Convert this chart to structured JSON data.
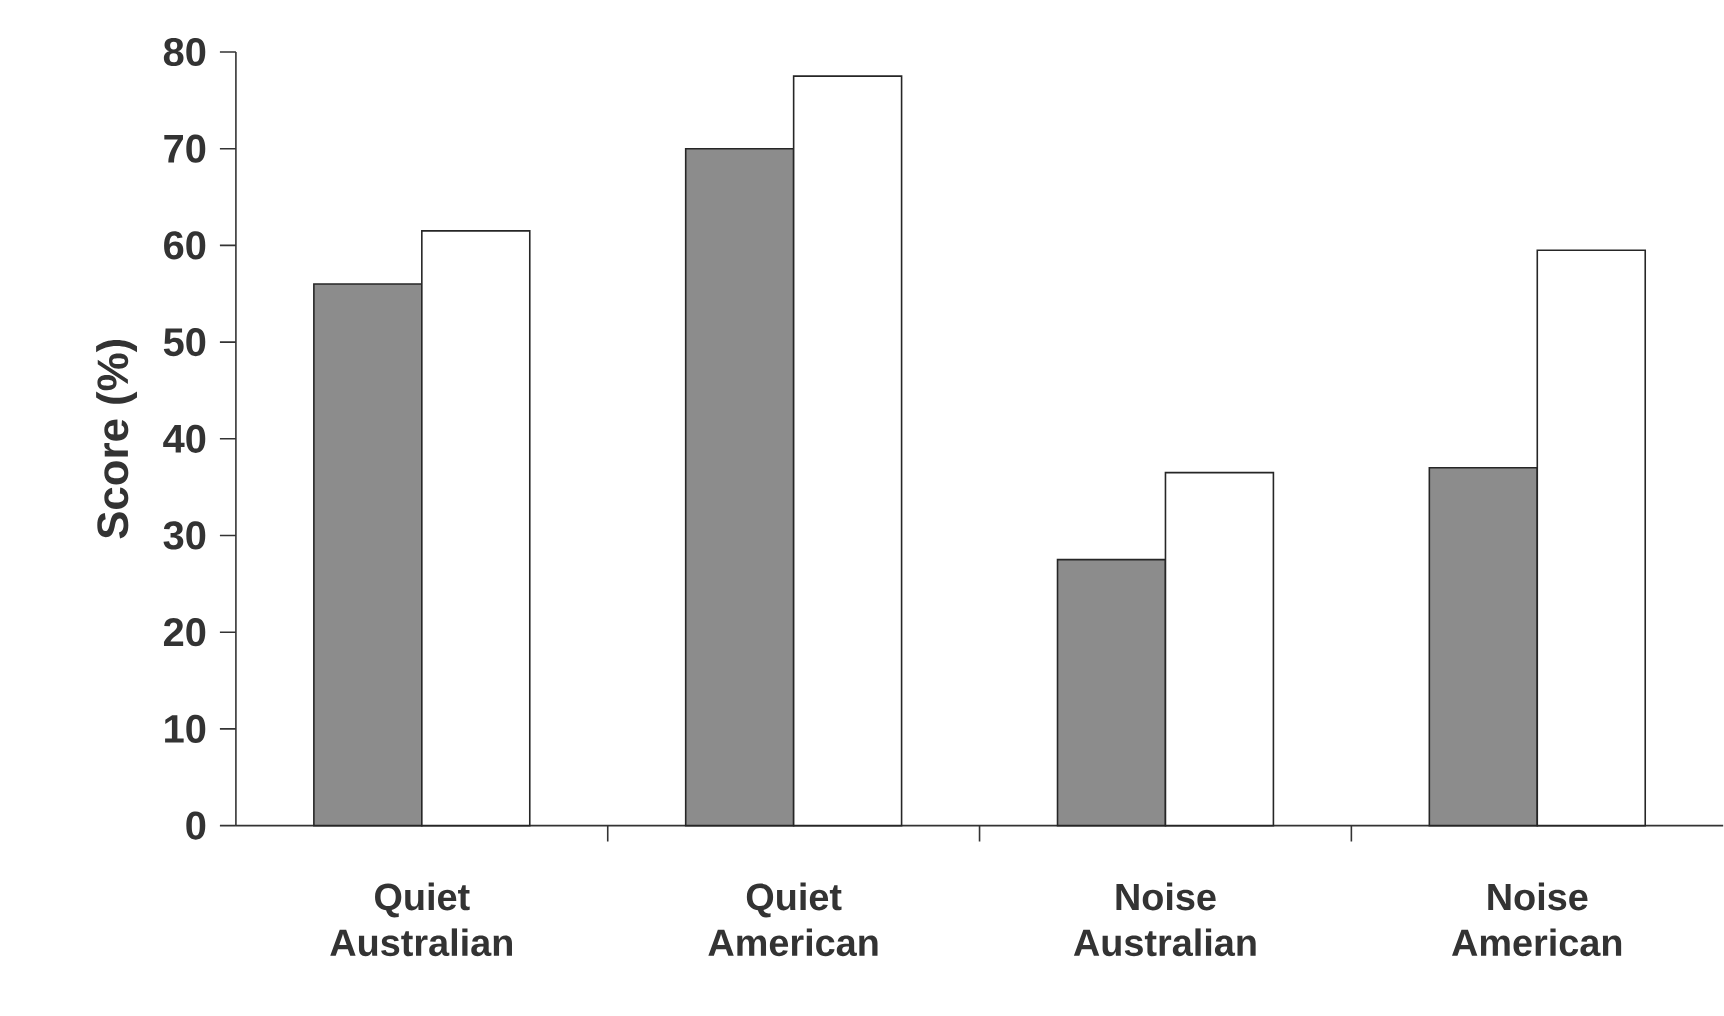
{
  "chart_data": {
    "type": "bar",
    "ylabel": "Score (%)",
    "categories": [
      "Quiet Australian",
      "Quiet American",
      "Noise Australian",
      "Noise American"
    ],
    "series": [
      {
        "color": "#8c8c8c",
        "values": [
          56,
          70,
          27.5,
          37
        ]
      },
      {
        "color": "#ffffff",
        "values": [
          61.5,
          77.5,
          36.5,
          59.5
        ]
      }
    ],
    "ylim": [
      0,
      80
    ],
    "yticks": [
      0,
      10,
      20,
      30,
      40,
      50,
      60,
      70,
      80
    ]
  }
}
